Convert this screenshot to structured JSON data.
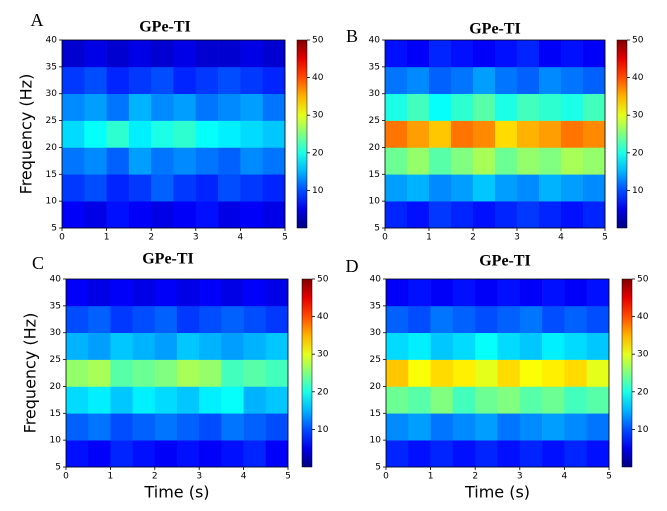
{
  "chart_data": [
    {
      "type": "heatmap",
      "panel": "A",
      "title": "GPe-TI",
      "ylabel": "Frequency (Hz)",
      "colormap": "jet",
      "xbins": [
        0,
        0.5,
        1,
        1.5,
        2,
        2.5,
        3,
        3.5,
        4,
        4.5,
        5
      ],
      "ybins": [
        5,
        10,
        15,
        20,
        25,
        30,
        35,
        40
      ],
      "values": [
        [
          6,
          5,
          7,
          6,
          5,
          6,
          7,
          5,
          6,
          5
        ],
        [
          9,
          10,
          8,
          9,
          11,
          9,
          8,
          10,
          9,
          8
        ],
        [
          12,
          13,
          11,
          14,
          12,
          13,
          12,
          11,
          13,
          12
        ],
        [
          17,
          19,
          21,
          18,
          20,
          21,
          19,
          18,
          17,
          16
        ],
        [
          13,
          14,
          12,
          15,
          13,
          14,
          12,
          13,
          14,
          12
        ],
        [
          9,
          10,
          8,
          9,
          10,
          8,
          9,
          10,
          9,
          8
        ],
        [
          4,
          5,
          4,
          5,
          4,
          5,
          4,
          4,
          5,
          4
        ]
      ],
      "xlim": [
        0,
        5
      ],
      "xticks": [
        0,
        1,
        2,
        3,
        4,
        5
      ],
      "ylim": [
        5,
        40
      ],
      "yticks": [
        5,
        10,
        15,
        20,
        25,
        30,
        35,
        40
      ],
      "clim": [
        0,
        50
      ],
      "cticks": [
        10,
        20,
        30,
        40,
        50
      ]
    },
    {
      "type": "heatmap",
      "panel": "B",
      "title": "GPe-TI",
      "colormap": "jet",
      "xbins": [
        0,
        0.5,
        1,
        1.5,
        2,
        2.5,
        3,
        3.5,
        4,
        4.5,
        5
      ],
      "ybins": [
        5,
        10,
        15,
        20,
        25,
        30,
        35,
        40
      ],
      "values": [
        [
          8,
          7,
          9,
          8,
          7,
          8,
          9,
          8,
          7,
          8
        ],
        [
          14,
          15,
          13,
          14,
          16,
          14,
          13,
          15,
          14,
          13
        ],
        [
          24,
          26,
          23,
          25,
          27,
          24,
          26,
          25,
          27,
          26
        ],
        [
          38,
          36,
          34,
          38,
          37,
          33,
          35,
          36,
          38,
          37
        ],
        [
          20,
          22,
          19,
          21,
          23,
          20,
          22,
          21,
          20,
          22
        ],
        [
          12,
          13,
          11,
          12,
          14,
          12,
          11,
          13,
          12,
          11
        ],
        [
          7,
          6,
          8,
          7,
          6,
          7,
          8,
          6,
          7,
          6
        ]
      ],
      "xlim": [
        0,
        5
      ],
      "xticks": [
        0,
        1,
        2,
        3,
        4,
        5
      ],
      "ylim": [
        5,
        40
      ],
      "yticks": [
        5,
        10,
        15,
        20,
        25,
        30,
        35,
        40
      ],
      "clim": [
        0,
        50
      ],
      "cticks": [
        10,
        20,
        30,
        40,
        50
      ]
    },
    {
      "type": "heatmap",
      "panel": "C",
      "title": "GPe-TI",
      "xlabel": "Time (s)",
      "ylabel": "Frequency (Hz)",
      "colormap": "jet",
      "xbins": [
        0,
        0.5,
        1,
        1.5,
        2,
        2.5,
        3,
        3.5,
        4,
        4.5,
        5
      ],
      "ybins": [
        5,
        10,
        15,
        20,
        25,
        30,
        35,
        40
      ],
      "values": [
        [
          7,
          6,
          8,
          7,
          6,
          7,
          6,
          7,
          8,
          6
        ],
        [
          11,
          12,
          10,
          11,
          12,
          11,
          10,
          12,
          11,
          10
        ],
        [
          17,
          18,
          16,
          18,
          17,
          16,
          18,
          19,
          15,
          16
        ],
        [
          26,
          27,
          23,
          24,
          25,
          27,
          26,
          22,
          23,
          22
        ],
        [
          15,
          14,
          16,
          15,
          14,
          16,
          15,
          14,
          15,
          16
        ],
        [
          10,
          11,
          9,
          10,
          11,
          9,
          10,
          11,
          10,
          9
        ],
        [
          6,
          5,
          6,
          5,
          6,
          5,
          6,
          5,
          6,
          5
        ]
      ],
      "xlim": [
        0,
        5
      ],
      "xticks": [
        0,
        1,
        2,
        3,
        4,
        5
      ],
      "ylim": [
        5,
        40
      ],
      "yticks": [
        5,
        10,
        15,
        20,
        25,
        30,
        35,
        40
      ],
      "clim": [
        0,
        50
      ],
      "cticks": [
        10,
        20,
        30,
        40,
        50
      ]
    },
    {
      "type": "heatmap",
      "panel": "D",
      "title": "GPe-TI",
      "xlabel": "Time (s)",
      "colormap": "jet",
      "xbins": [
        0,
        0.5,
        1,
        1.5,
        2,
        2.5,
        3,
        3.5,
        4,
        4.5,
        5
      ],
      "ybins": [
        5,
        10,
        15,
        20,
        25,
        30,
        35,
        40
      ],
      "values": [
        [
          8,
          7,
          8,
          7,
          8,
          7,
          8,
          7,
          8,
          7
        ],
        [
          13,
          14,
          12,
          13,
          14,
          12,
          13,
          14,
          13,
          12
        ],
        [
          24,
          23,
          25,
          22,
          24,
          25,
          23,
          24,
          22,
          23
        ],
        [
          34,
          31,
          33,
          32,
          30,
          33,
          31,
          32,
          33,
          30
        ],
        [
          17,
          18,
          16,
          17,
          19,
          17,
          16,
          18,
          17,
          16
        ],
        [
          11,
          10,
          12,
          11,
          10,
          11,
          12,
          10,
          11,
          10
        ],
        [
          6,
          7,
          6,
          7,
          6,
          7,
          6,
          7,
          6,
          7
        ]
      ],
      "xlim": [
        0,
        5
      ],
      "xticks": [
        0,
        1,
        2,
        3,
        4,
        5
      ],
      "ylim": [
        5,
        40
      ],
      "yticks": [
        5,
        10,
        15,
        20,
        25,
        30,
        35,
        40
      ],
      "clim": [
        0,
        50
      ],
      "cticks": [
        10,
        20,
        30,
        40,
        50
      ]
    }
  ]
}
